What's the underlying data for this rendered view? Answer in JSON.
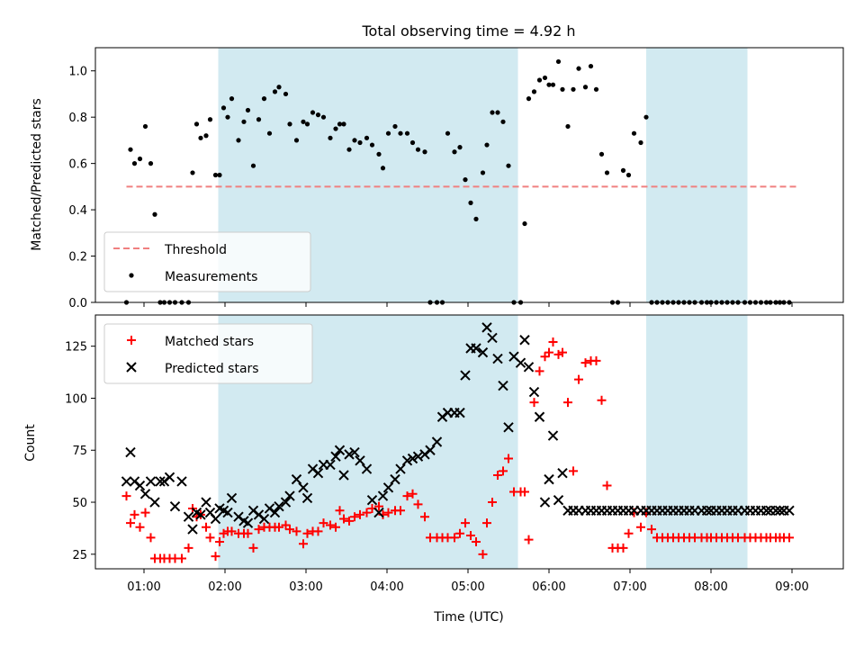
{
  "title": "Total observing time = 4.92 h",
  "colors": {
    "shade": "#add8e6",
    "threshold": "#f08080",
    "measurements": "#000000",
    "matched": "#ff0000",
    "predicted": "#000000"
  },
  "chart_data": [
    {
      "type": "scatter",
      "ylabel": "Matched/Predicted stars",
      "xlabel": "",
      "ylim": [
        0,
        1.1
      ],
      "yticks": [
        "0.0",
        "0.2",
        "0.4",
        "0.6",
        "0.8",
        "1.0"
      ],
      "shaded_intervals": [
        [
          "01:55",
          "05:37"
        ],
        [
          "07:12",
          "08:27"
        ]
      ],
      "threshold": {
        "name": "Threshold",
        "value": 0.5,
        "x_start": "00:47",
        "x_end": "09:04"
      },
      "legend": {
        "placement": "lower-left",
        "entries": [
          "Threshold",
          "Measurements"
        ]
      },
      "series": [
        {
          "name": "Measurements",
          "x": [
            "00:47",
            "00:50",
            "00:53",
            "00:57",
            "01:01",
            "01:05",
            "01:08",
            "01:12",
            "01:15",
            "01:19",
            "01:23",
            "01:28",
            "01:33",
            "01:36",
            "01:39",
            "01:42",
            "01:46",
            "01:49",
            "01:53",
            "01:56",
            "01:59",
            "02:02",
            "02:05",
            "02:10",
            "02:14",
            "02:17",
            "02:21",
            "02:25",
            "02:29",
            "02:33",
            "02:37",
            "02:40",
            "02:45",
            "02:48",
            "02:53",
            "02:58",
            "03:01",
            "03:05",
            "03:09",
            "03:13",
            "03:18",
            "03:22",
            "03:25",
            "03:28",
            "03:32",
            "03:36",
            "03:40",
            "03:45",
            "03:49",
            "03:54",
            "03:57",
            "04:01",
            "04:06",
            "04:10",
            "04:15",
            "04:19",
            "04:23",
            "04:28",
            "04:32",
            "04:37",
            "04:41",
            "04:45",
            "04:50",
            "04:54",
            "04:58",
            "05:02",
            "05:06",
            "05:11",
            "05:14",
            "05:18",
            "05:22",
            "05:26",
            "05:30",
            "05:34",
            "05:39",
            "05:42",
            "05:45",
            "05:49",
            "05:53",
            "05:57",
            "06:00",
            "06:03",
            "06:07",
            "06:10",
            "06:14",
            "06:18",
            "06:22",
            "06:27",
            "06:31",
            "06:35",
            "06:39",
            "06:43",
            "06:47",
            "06:51",
            "06:55",
            "06:59",
            "07:03",
            "07:08",
            "07:12",
            "07:16",
            "07:20",
            "07:24",
            "07:28",
            "07:32",
            "07:36",
            "07:40",
            "07:44",
            "07:48",
            "07:53",
            "07:57",
            "08:00",
            "08:04",
            "08:08",
            "08:12",
            "08:16",
            "08:20",
            "08:25",
            "08:29",
            "08:33",
            "08:37",
            "08:41",
            "08:44",
            "08:48",
            "08:51",
            "08:54",
            "08:58"
          ],
          "y": [
            0.0,
            0.66,
            0.6,
            0.62,
            0.76,
            0.6,
            0.38,
            0.0,
            0.0,
            0.0,
            0.0,
            0.0,
            0.0,
            0.56,
            0.77,
            0.71,
            0.72,
            0.79,
            0.55,
            0.55,
            0.84,
            0.8,
            0.88,
            0.7,
            0.78,
            0.83,
            0.59,
            0.79,
            0.88,
            0.73,
            0.91,
            0.93,
            0.9,
            0.77,
            0.7,
            0.78,
            0.77,
            0.82,
            0.81,
            0.8,
            0.71,
            0.75,
            0.77,
            0.77,
            0.66,
            0.7,
            0.69,
            0.71,
            0.68,
            0.64,
            0.58,
            0.73,
            0.76,
            0.73,
            0.73,
            0.69,
            0.66,
            0.65,
            0.0,
            0.0,
            0.0,
            0.73,
            0.65,
            0.67,
            0.53,
            0.43,
            0.36,
            0.56,
            0.68,
            0.82,
            0.82,
            0.78,
            0.59,
            0.0,
            0.0,
            0.34,
            0.88,
            0.91,
            0.96,
            0.97,
            0.94,
            0.94,
            1.04,
            0.92,
            0.76,
            0.92,
            1.01,
            0.93,
            1.02,
            0.92,
            0.64,
            0.56,
            0.0,
            0.0,
            0.57,
            0.55,
            0.73,
            0.69,
            0.8,
            0.0,
            0.0,
            0.0,
            0.0,
            0.0,
            0.0,
            0.0,
            0.0,
            0.0,
            0.0,
            0.0,
            0.0,
            0.0,
            0.0,
            0.0,
            0.0,
            0.0,
            0.0,
            0.0,
            0.0,
            0.0,
            0.0,
            0.0,
            0.0,
            0.0,
            0.0,
            0.0
          ]
        }
      ]
    },
    {
      "type": "scatter",
      "ylabel": "Count",
      "xlabel": "Time (UTC)",
      "ylim": [
        18,
        140
      ],
      "yticks": [
        "25",
        "50",
        "75",
        "100",
        "125"
      ],
      "xticks": [
        "01:00",
        "02:00",
        "03:00",
        "04:00",
        "05:00",
        "06:00",
        "07:00",
        "08:00",
        "09:00"
      ],
      "shaded_intervals": [
        [
          "01:55",
          "05:37"
        ],
        [
          "07:12",
          "08:27"
        ]
      ],
      "legend": {
        "placement": "upper-left",
        "entries": [
          "Matched stars",
          "Predicted stars"
        ]
      },
      "series": [
        {
          "name": "Matched stars",
          "x": [
            "00:47",
            "00:50",
            "00:53",
            "00:57",
            "01:01",
            "01:05",
            "01:08",
            "01:12",
            "01:15",
            "01:19",
            "01:23",
            "01:28",
            "01:33",
            "01:36",
            "01:39",
            "01:42",
            "01:46",
            "01:49",
            "01:53",
            "01:56",
            "01:59",
            "02:02",
            "02:05",
            "02:10",
            "02:14",
            "02:17",
            "02:21",
            "02:25",
            "02:29",
            "02:33",
            "02:37",
            "02:40",
            "02:45",
            "02:48",
            "02:53",
            "02:58",
            "03:01",
            "03:05",
            "03:09",
            "03:13",
            "03:18",
            "03:22",
            "03:25",
            "03:28",
            "03:32",
            "03:36",
            "03:40",
            "03:45",
            "03:49",
            "03:54",
            "03:57",
            "04:01",
            "04:06",
            "04:10",
            "04:15",
            "04:19",
            "04:23",
            "04:28",
            "04:32",
            "04:37",
            "04:41",
            "04:45",
            "04:50",
            "04:54",
            "04:58",
            "05:02",
            "05:06",
            "05:11",
            "05:14",
            "05:18",
            "05:22",
            "05:26",
            "05:30",
            "05:34",
            "05:39",
            "05:42",
            "05:45",
            "05:49",
            "05:53",
            "05:57",
            "06:00",
            "06:03",
            "06:07",
            "06:10",
            "06:14",
            "06:18",
            "06:22",
            "06:27",
            "06:31",
            "06:35",
            "06:39",
            "06:43",
            "06:47",
            "06:51",
            "06:55",
            "06:59",
            "07:03",
            "07:08",
            "07:12",
            "07:16",
            "07:20",
            "07:24",
            "07:28",
            "07:32",
            "07:36",
            "07:40",
            "07:44",
            "07:48",
            "07:53",
            "07:57",
            "08:00",
            "08:04",
            "08:08",
            "08:12",
            "08:16",
            "08:20",
            "08:25",
            "08:29",
            "08:33",
            "08:37",
            "08:41",
            "08:44",
            "08:48",
            "08:51",
            "08:54",
            "08:58"
          ],
          "y": [
            53,
            40,
            44,
            38,
            45,
            33,
            23,
            23,
            23,
            23,
            23,
            23,
            28,
            47,
            43,
            44,
            38,
            33,
            24,
            31,
            35,
            36,
            36,
            35,
            35,
            35,
            28,
            37,
            38,
            38,
            38,
            38,
            39,
            37,
            36,
            30,
            35,
            36,
            36,
            40,
            39,
            38,
            46,
            42,
            41,
            43,
            44,
            45,
            47,
            48,
            44,
            45,
            46,
            46,
            53,
            54,
            49,
            43,
            33,
            33,
            33,
            33,
            33,
            35,
            40,
            34,
            31,
            25,
            40,
            50,
            63,
            65,
            71,
            55,
            55,
            55,
            32,
            98,
            113,
            120,
            122,
            127,
            121,
            122,
            98,
            65,
            109,
            117,
            118,
            118,
            99,
            58,
            28,
            28,
            28,
            35,
            45,
            38,
            45,
            37,
            33,
            33,
            33,
            33,
            33,
            33,
            33,
            33,
            33,
            33,
            33,
            33,
            33,
            33,
            33,
            33,
            33,
            33,
            33,
            33,
            33,
            33,
            33,
            33,
            33,
            33
          ]
        },
        {
          "name": "Predicted stars",
          "x": [
            "00:47",
            "00:50",
            "00:53",
            "00:57",
            "01:01",
            "01:05",
            "01:08",
            "01:12",
            "01:15",
            "01:19",
            "01:23",
            "01:28",
            "01:33",
            "01:36",
            "01:39",
            "01:42",
            "01:46",
            "01:49",
            "01:53",
            "01:56",
            "01:59",
            "02:02",
            "02:05",
            "02:10",
            "02:14",
            "02:17",
            "02:21",
            "02:25",
            "02:29",
            "02:33",
            "02:37",
            "02:40",
            "02:45",
            "02:48",
            "02:53",
            "02:58",
            "03:01",
            "03:05",
            "03:09",
            "03:13",
            "03:18",
            "03:22",
            "03:25",
            "03:28",
            "03:32",
            "03:36",
            "03:40",
            "03:45",
            "03:49",
            "03:54",
            "03:57",
            "04:01",
            "04:06",
            "04:10",
            "04:15",
            "04:19",
            "04:23",
            "04:28",
            "04:32",
            "04:37",
            "04:41",
            "04:45",
            "04:50",
            "04:54",
            "04:58",
            "05:02",
            "05:06",
            "05:11",
            "05:14",
            "05:18",
            "05:22",
            "05:26",
            "05:30",
            "05:34",
            "05:39",
            "05:42",
            "05:45",
            "05:49",
            "05:53",
            "05:57",
            "06:00",
            "06:03",
            "06:07",
            "06:10",
            "06:14",
            "06:18",
            "06:22",
            "06:27",
            "06:31",
            "06:35",
            "06:39",
            "06:43",
            "06:47",
            "06:51",
            "06:55",
            "06:59",
            "07:03",
            "07:08",
            "07:12",
            "07:16",
            "07:20",
            "07:24",
            "07:28",
            "07:32",
            "07:36",
            "07:40",
            "07:44",
            "07:48",
            "07:53",
            "07:57",
            "08:00",
            "08:04",
            "08:08",
            "08:12",
            "08:16",
            "08:20",
            "08:25",
            "08:29",
            "08:33",
            "08:37",
            "08:41",
            "08:44",
            "08:48",
            "08:51",
            "08:54",
            "08:58"
          ],
          "y": [
            60,
            74,
            60,
            58,
            54,
            60,
            50,
            60,
            60,
            62,
            48,
            60,
            43,
            37,
            45,
            44,
            50,
            45,
            42,
            47,
            46,
            45,
            52,
            43,
            41,
            40,
            46,
            44,
            42,
            47,
            45,
            48,
            50,
            53,
            61,
            57,
            52,
            66,
            64,
            68,
            68,
            72,
            75,
            63,
            73,
            74,
            70,
            66,
            51,
            45,
            53,
            57,
            61,
            66,
            70,
            71,
            72,
            73,
            75,
            79,
            91,
            93,
            93,
            93,
            111,
            124,
            124,
            122,
            134,
            129,
            119,
            106,
            86,
            120,
            117,
            128,
            115,
            103,
            91,
            50,
            61,
            82,
            51,
            64,
            46,
            46,
            46,
            46,
            46,
            46,
            46,
            46,
            46,
            46,
            46,
            46,
            46,
            46,
            46,
            46,
            46,
            46,
            46,
            46,
            46,
            46,
            46,
            46,
            46,
            46,
            46,
            46,
            46,
            46,
            46,
            46,
            46,
            46,
            46,
            46,
            46,
            46,
            46,
            46,
            46,
            46
          ]
        }
      ]
    }
  ]
}
